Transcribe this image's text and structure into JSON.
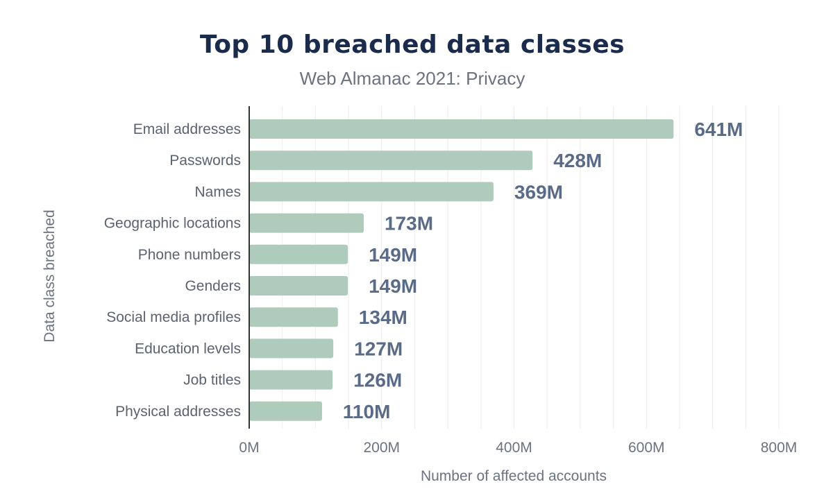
{
  "chart_data": {
    "type": "bar",
    "orientation": "horizontal",
    "title": "Top 10 breached data classes",
    "subtitle": "Web Almanac 2021: Privacy",
    "xlabel": "Number of affected accounts",
    "ylabel": "Data class breached",
    "categories": [
      "Email addresses",
      "Passwords",
      "Names",
      "Geographic locations",
      "Phone numbers",
      "Genders",
      "Social media profiles",
      "Education levels",
      "Job titles",
      "Physical addresses"
    ],
    "values": [
      641,
      428,
      369,
      173,
      149,
      149,
      134,
      127,
      126,
      110
    ],
    "value_labels": [
      "641M",
      "428M",
      "369M",
      "173M",
      "149M",
      "149M",
      "134M",
      "127M",
      "126M",
      "110M"
    ],
    "xlim": [
      0,
      800
    ],
    "xticks": [
      0,
      200,
      400,
      600,
      800
    ],
    "xtick_labels": [
      "0M",
      "200M",
      "400M",
      "600M",
      "800M"
    ],
    "grid": true,
    "legend": "none",
    "colors": {
      "bar": "#aecbbc",
      "value_label": "#596b87",
      "title": "#1a2b4b",
      "grid": "#ececec",
      "axis": "#333333"
    }
  }
}
